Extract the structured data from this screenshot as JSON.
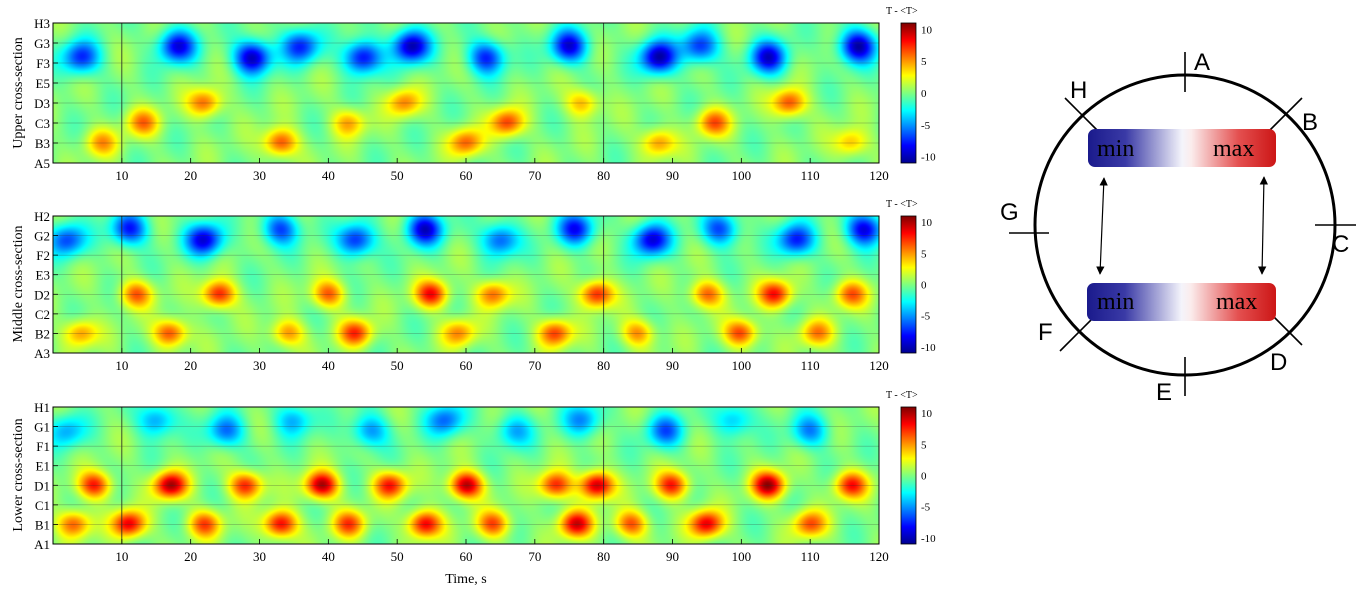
{
  "chart_data": [
    {
      "type": "heatmap",
      "ylabel": "Upper cross-section",
      "xlabel": "",
      "x_ticks": [
        10,
        20,
        30,
        40,
        50,
        60,
        70,
        80,
        90,
        100,
        110,
        120
      ],
      "xlim": [
        0,
        120
      ],
      "y_categories": [
        "A5",
        "B3",
        "C3",
        "D3",
        "E5",
        "F3",
        "G3",
        "H3"
      ],
      "colorbar": {
        "title": "T - <T>",
        "ticks": [
          10,
          5,
          0,
          -5,
          -10
        ],
        "range": [
          -11,
          11
        ],
        "colormap": "jet"
      },
      "approx_pattern": {
        "cold_band_rows": [
          "F3",
          "G3"
        ],
        "cold_min": -10,
        "cold_peak_times": [
          4,
          18,
          29,
          36,
          45,
          52,
          63,
          75,
          88,
          94,
          104,
          117
        ],
        "warm_band_rows": [
          "B3",
          "C3",
          "D3"
        ],
        "warm_max": 7,
        "warm_peak_times": [
          7,
          13,
          22,
          33,
          43,
          51,
          60,
          66,
          77,
          88,
          96,
          107,
          116
        ]
      }
    },
    {
      "type": "heatmap",
      "ylabel": "Middle cross-section",
      "xlabel": "",
      "x_ticks": [
        10,
        20,
        30,
        40,
        50,
        60,
        70,
        80,
        90,
        100,
        110,
        120
      ],
      "xlim": [
        0,
        120
      ],
      "y_categories": [
        "A3",
        "B2",
        "C2",
        "D2",
        "E3",
        "F2",
        "G2",
        "H2"
      ],
      "colorbar": {
        "title": "T - <T>",
        "ticks": [
          10,
          5,
          0,
          -5,
          -10
        ],
        "range": [
          -11,
          11
        ],
        "colormap": "jet"
      },
      "approx_pattern": {
        "cold_band_rows": [
          "F2",
          "G2",
          "H2"
        ],
        "cold_min": -9,
        "cold_peak_times": [
          2,
          11,
          22,
          33,
          44,
          54,
          65,
          76,
          87,
          97,
          108,
          118
        ],
        "warm_band_rows": [
          "B2",
          "D2"
        ],
        "warm_max": 8,
        "warm_peak_times": [
          4,
          12,
          17,
          24,
          34,
          40,
          44,
          55,
          59,
          64,
          73,
          79,
          85,
          95,
          100,
          105,
          111,
          116
        ]
      }
    },
    {
      "type": "heatmap",
      "ylabel": "Lower cross-section",
      "xlabel": "Time, s",
      "x_ticks": [
        10,
        20,
        30,
        40,
        50,
        60,
        70,
        80,
        90,
        100,
        110,
        120
      ],
      "xlim": [
        0,
        120
      ],
      "y_categories": [
        "A1",
        "B1",
        "C1",
        "D1",
        "E1",
        "F1",
        "G1",
        "H1"
      ],
      "colorbar": {
        "title": "T - <T>",
        "ticks": [
          10,
          5,
          0,
          -5,
          -10
        ],
        "range": [
          -11,
          11
        ],
        "colormap": "jet"
      },
      "approx_pattern": {
        "cold_band_rows": [
          "F1",
          "G1",
          "H1"
        ],
        "cold_min": -6,
        "cold_peak_times": [
          2,
          15,
          25,
          35,
          46,
          57,
          67,
          77,
          89,
          99,
          110
        ],
        "warm_band_rows": [
          "B1",
          "D1"
        ],
        "warm_max": 10,
        "warm_peak_times": [
          3,
          6,
          11,
          17,
          22,
          28,
          33,
          39,
          43,
          49,
          54,
          60,
          64,
          73,
          76,
          79,
          84,
          90,
          95,
          104,
          110,
          116
        ]
      }
    }
  ],
  "diagram": {
    "position_labels": [
      "A",
      "B",
      "C",
      "D",
      "E",
      "F",
      "G",
      "H"
    ],
    "upper_bar": {
      "min_label": "min",
      "max_label": "max"
    },
    "lower_bar": {
      "min_label": "min",
      "max_label": "max"
    }
  }
}
